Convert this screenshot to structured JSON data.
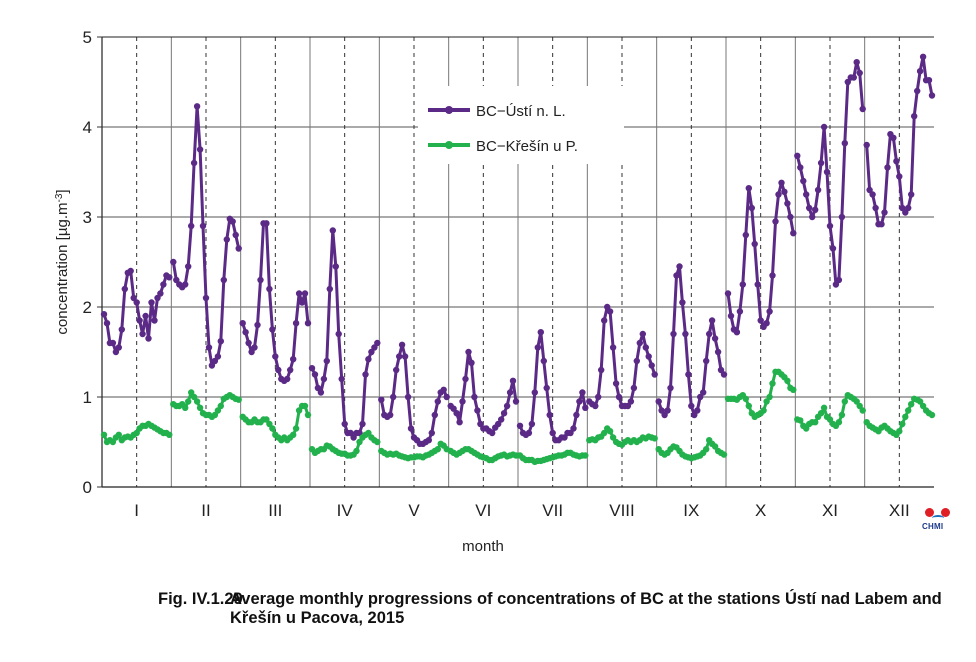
{
  "chart_data": {
    "type": "line",
    "xlabel": "month",
    "ylabel": "concentration [µg.m",
    "ylabel_superscript": "-3",
    "ylabel_suffix": "]",
    "ylim": [
      0,
      5
    ],
    "yticks": [
      "0",
      "1",
      "2",
      "3",
      "4",
      "5"
    ],
    "categories": [
      "I",
      "II",
      "III",
      "IV",
      "V",
      "VI",
      "VII",
      "VIII",
      "IX",
      "X",
      "XI",
      "XII"
    ],
    "grid": true,
    "legend_position": "top-center",
    "series": [
      {
        "name": "BC−Ústí n. L.",
        "color": "#5b2a86",
        "months": [
          [
            1.92,
            1.82,
            1.6,
            1.6,
            1.5,
            1.55,
            1.75,
            2.2,
            2.38,
            2.4,
            2.1,
            2.05,
            1.85,
            1.7,
            1.9,
            1.65,
            2.05,
            1.85,
            2.1,
            2.15,
            2.25,
            2.35,
            2.33
          ],
          [
            2.5,
            2.3,
            2.25,
            2.22,
            2.25,
            2.45,
            2.9,
            3.6,
            4.23,
            3.75,
            2.9,
            2.1,
            1.55,
            1.35,
            1.4,
            1.45,
            1.62,
            2.3,
            2.75,
            2.98,
            2.95,
            2.8,
            2.65
          ],
          [
            1.82,
            1.72,
            1.6,
            1.5,
            1.55,
            1.8,
            2.3,
            2.93,
            2.93,
            2.2,
            1.75,
            1.45,
            1.3,
            1.2,
            1.18,
            1.2,
            1.3,
            1.42,
            1.82,
            2.15,
            2.05,
            2.15,
            1.82
          ],
          [
            1.32,
            1.25,
            1.1,
            1.05,
            1.2,
            1.4,
            2.2,
            2.85,
            2.45,
            1.7,
            1.2,
            0.7,
            0.6,
            0.6,
            0.55,
            0.6,
            0.6,
            0.7,
            1.25,
            1.42,
            1.5,
            1.55,
            1.6
          ],
          [
            0.97,
            0.8,
            0.78,
            0.8,
            1.0,
            1.3,
            1.45,
            1.58,
            1.45,
            1.0,
            0.65,
            0.55,
            0.52,
            0.48,
            0.48,
            0.5,
            0.52,
            0.6,
            0.8,
            0.95,
            1.05,
            1.08,
            1.0
          ],
          [
            0.9,
            0.87,
            0.82,
            0.72,
            0.95,
            1.2,
            1.5,
            1.38,
            1.0,
            0.85,
            0.7,
            0.65,
            0.65,
            0.62,
            0.6,
            0.66,
            0.7,
            0.75,
            0.82,
            0.9,
            1.05,
            1.18,
            0.95
          ],
          [
            0.68,
            0.6,
            0.58,
            0.6,
            0.7,
            1.05,
            1.55,
            1.72,
            1.4,
            1.1,
            0.8,
            0.6,
            0.52,
            0.52,
            0.55,
            0.55,
            0.6,
            0.6,
            0.65,
            0.8,
            0.95,
            1.05,
            0.88
          ],
          [
            0.95,
            0.92,
            0.9,
            1.0,
            1.3,
            1.85,
            2.0,
            1.95,
            1.55,
            1.15,
            1.0,
            0.9,
            0.9,
            0.9,
            0.95,
            1.1,
            1.4,
            1.6,
            1.7,
            1.55,
            1.45,
            1.35,
            1.25
          ],
          [
            0.95,
            0.85,
            0.8,
            0.85,
            1.1,
            1.7,
            2.35,
            2.45,
            2.05,
            1.7,
            1.25,
            0.9,
            0.8,
            0.85,
            1.0,
            1.05,
            1.4,
            1.7,
            1.85,
            1.65,
            1.5,
            1.3,
            1.25
          ],
          [
            2.15,
            1.9,
            1.75,
            1.72,
            1.95,
            2.25,
            2.8,
            3.32,
            3.1,
            2.7,
            2.25,
            1.85,
            1.78,
            1.82,
            1.95,
            2.35,
            2.95,
            3.25,
            3.38,
            3.28,
            3.15,
            3.0,
            2.82
          ],
          [
            3.68,
            3.55,
            3.4,
            3.25,
            3.1,
            3.0,
            3.08,
            3.3,
            3.6,
            4.0,
            3.5,
            2.9,
            2.65,
            2.25,
            2.3,
            3.0,
            3.82,
            4.5,
            4.55,
            4.55,
            4.72,
            4.6,
            4.2
          ],
          [
            3.8,
            3.3,
            3.25,
            3.1,
            2.92,
            2.92,
            3.05,
            3.55,
            3.92,
            3.88,
            3.62,
            3.45,
            3.1,
            3.05,
            3.1,
            3.25,
            4.12,
            4.4,
            4.62,
            4.78,
            4.52,
            4.52,
            4.35
          ]
        ]
      },
      {
        "name": "BC−Křešín u P.",
        "color": "#22b14c",
        "months": [
          [
            0.58,
            0.5,
            0.52,
            0.5,
            0.55,
            0.58,
            0.52,
            0.55,
            0.56,
            0.55,
            0.58,
            0.6,
            0.65,
            0.68,
            0.68,
            0.7,
            0.68,
            0.66,
            0.64,
            0.62,
            0.6,
            0.6,
            0.58
          ],
          [
            0.92,
            0.9,
            0.9,
            0.92,
            0.88,
            0.95,
            1.05,
            1.0,
            0.95,
            0.88,
            0.82,
            0.8,
            0.8,
            0.78,
            0.8,
            0.85,
            0.9,
            0.98,
            1.0,
            1.02,
            1.0,
            0.98,
            0.97
          ],
          [
            0.78,
            0.75,
            0.72,
            0.72,
            0.75,
            0.72,
            0.72,
            0.75,
            0.75,
            0.7,
            0.65,
            0.58,
            0.55,
            0.52,
            0.55,
            0.52,
            0.55,
            0.58,
            0.65,
            0.85,
            0.9,
            0.9,
            0.8
          ],
          [
            0.42,
            0.38,
            0.4,
            0.42,
            0.42,
            0.46,
            0.45,
            0.42,
            0.4,
            0.38,
            0.37,
            0.37,
            0.35,
            0.35,
            0.36,
            0.4,
            0.5,
            0.55,
            0.58,
            0.6,
            0.55,
            0.52,
            0.5
          ],
          [
            0.4,
            0.38,
            0.36,
            0.37,
            0.36,
            0.37,
            0.35,
            0.34,
            0.33,
            0.32,
            0.33,
            0.33,
            0.34,
            0.34,
            0.33,
            0.35,
            0.36,
            0.38,
            0.4,
            0.42,
            0.48,
            0.46,
            0.42
          ],
          [
            0.4,
            0.38,
            0.36,
            0.38,
            0.4,
            0.42,
            0.42,
            0.4,
            0.38,
            0.36,
            0.34,
            0.33,
            0.32,
            0.3,
            0.3,
            0.32,
            0.34,
            0.35,
            0.36,
            0.34,
            0.35,
            0.36,
            0.35
          ],
          [
            0.35,
            0.32,
            0.3,
            0.3,
            0.3,
            0.28,
            0.29,
            0.29,
            0.3,
            0.31,
            0.32,
            0.33,
            0.34,
            0.35,
            0.35,
            0.36,
            0.38,
            0.38,
            0.36,
            0.35,
            0.34,
            0.35,
            0.35
          ],
          [
            0.52,
            0.53,
            0.52,
            0.55,
            0.56,
            0.6,
            0.65,
            0.62,
            0.55,
            0.5,
            0.48,
            0.47,
            0.5,
            0.52,
            0.5,
            0.52,
            0.5,
            0.52,
            0.55,
            0.54,
            0.56,
            0.55,
            0.54
          ],
          [
            0.42,
            0.38,
            0.36,
            0.38,
            0.42,
            0.45,
            0.44,
            0.4,
            0.36,
            0.34,
            0.33,
            0.32,
            0.33,
            0.34,
            0.35,
            0.38,
            0.42,
            0.52,
            0.48,
            0.45,
            0.4,
            0.38,
            0.36
          ],
          [
            0.98,
            0.98,
            0.98,
            0.97,
            1.0,
            1.02,
            0.98,
            0.9,
            0.82,
            0.78,
            0.8,
            0.82,
            0.85,
            0.95,
            1.0,
            1.15,
            1.28,
            1.28,
            1.25,
            1.22,
            1.18,
            1.1,
            1.08
          ],
          [
            0.75,
            0.74,
            0.68,
            0.65,
            0.7,
            0.72,
            0.72,
            0.78,
            0.82,
            0.88,
            0.78,
            0.75,
            0.7,
            0.68,
            0.72,
            0.8,
            0.95,
            1.02,
            1.0,
            0.98,
            0.95,
            0.9,
            0.85
          ],
          [
            0.72,
            0.68,
            0.66,
            0.64,
            0.62,
            0.66,
            0.68,
            0.65,
            0.62,
            0.6,
            0.58,
            0.62,
            0.7,
            0.78,
            0.85,
            0.92,
            0.98,
            0.97,
            0.95,
            0.9,
            0.85,
            0.82,
            0.8
          ]
        ]
      }
    ]
  },
  "caption": {
    "label": "Fig. IV.1.29",
    "text": "Average monthly progressions of concentrations of BC at the stations Ústí nad Labem and Křešín u Pacova, 2015"
  },
  "logo": {
    "text": "CHMI"
  }
}
